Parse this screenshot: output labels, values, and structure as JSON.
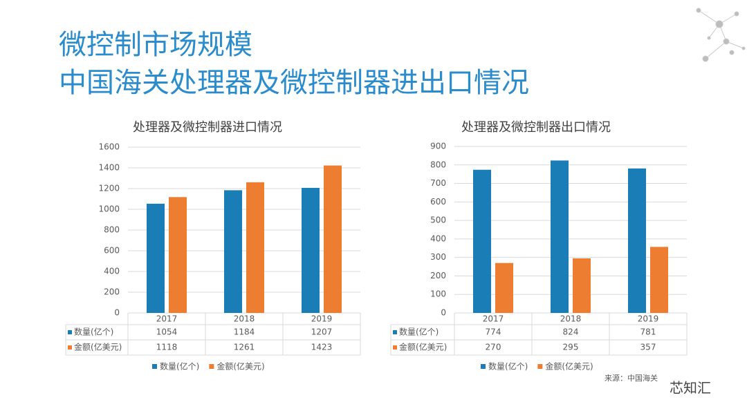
{
  "header": {
    "title": "微控制市场规模",
    "subtitle": "中国海关处理器及微控制器进出口情况"
  },
  "chart_data": [
    {
      "type": "bar",
      "title": "处理器及微控制器进口情况",
      "categories": [
        "2017",
        "2018",
        "2019"
      ],
      "series": [
        {
          "name": "数量(亿个)",
          "color": "#1a7db5",
          "values": [
            1054,
            1184,
            1207
          ]
        },
        {
          "name": "金额(亿美元)",
          "color": "#ed7d31",
          "values": [
            1118,
            1261,
            1423
          ]
        }
      ],
      "ylim": [
        0,
        1600
      ],
      "yticks": [
        0,
        200,
        400,
        600,
        800,
        1000,
        1200,
        1400,
        1600
      ],
      "grid": true,
      "legend": "bottom"
    },
    {
      "type": "bar",
      "title": "处理器及微控制器出口情况",
      "categories": [
        "2017",
        "2018",
        "2019"
      ],
      "series": [
        {
          "name": "数量(亿个)",
          "color": "#1a7db5",
          "values": [
            774,
            824,
            781
          ]
        },
        {
          "name": "金额(亿美元)",
          "color": "#ed7d31",
          "values": [
            270,
            295,
            357
          ]
        }
      ],
      "ylim": [
        0,
        900
      ],
      "yticks": [
        0,
        100,
        200,
        300,
        400,
        500,
        600,
        700,
        800,
        900
      ],
      "grid": true,
      "legend": "bottom"
    }
  ],
  "source": "来源：中国海关",
  "watermark": "芯知汇"
}
